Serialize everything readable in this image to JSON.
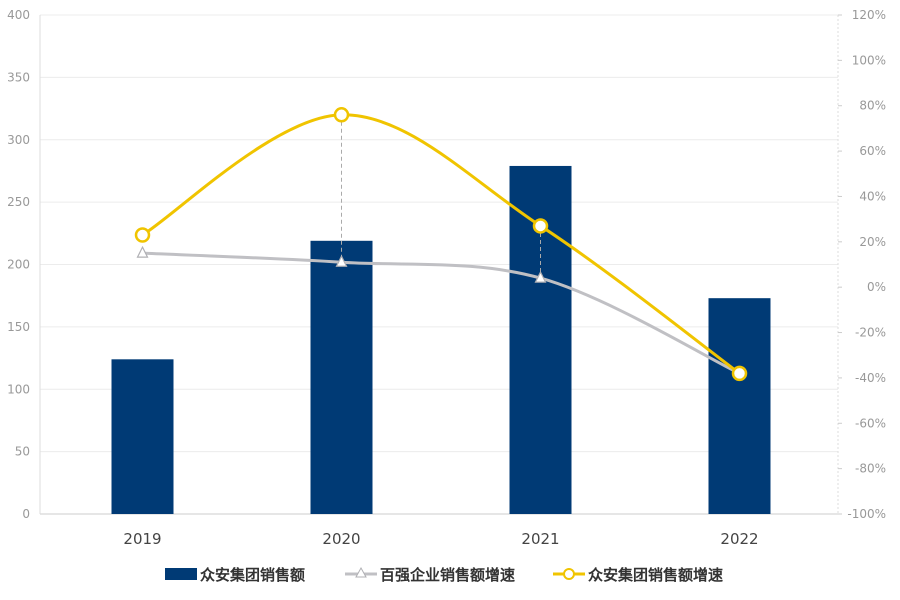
{
  "chart_data": {
    "type": "bar+line",
    "categories": [
      "2019",
      "2020",
      "2021",
      "2022"
    ],
    "series": [
      {
        "name": "众安集团销售额",
        "type": "bar",
        "axis": "left",
        "values": [
          124,
          219,
          279,
          173
        ],
        "color": "#003a75"
      },
      {
        "name": "百强企业销售额增速",
        "type": "line",
        "axis": "right",
        "marker": "triangle",
        "values": [
          15,
          11,
          4,
          -38
        ],
        "color": "#c0c0c4"
      },
      {
        "name": "众安集团销售额增速",
        "type": "line",
        "axis": "right",
        "marker": "circle",
        "values": [
          23,
          76,
          27,
          -38
        ],
        "color": "#f0c400"
      }
    ],
    "y_left": {
      "range": [
        0,
        400
      ],
      "ticks": [
        "0",
        "50",
        "100",
        "150",
        "200",
        "250",
        "300",
        "350",
        "400"
      ]
    },
    "y_right": {
      "range": [
        -100,
        120
      ],
      "ticks": [
        "-100%",
        "-80%",
        "-60%",
        "-40%",
        "-20%",
        "0%",
        "20%",
        "40%",
        "60%",
        "80%",
        "100%",
        "120%"
      ]
    },
    "grid": true,
    "legend": "bottom"
  }
}
